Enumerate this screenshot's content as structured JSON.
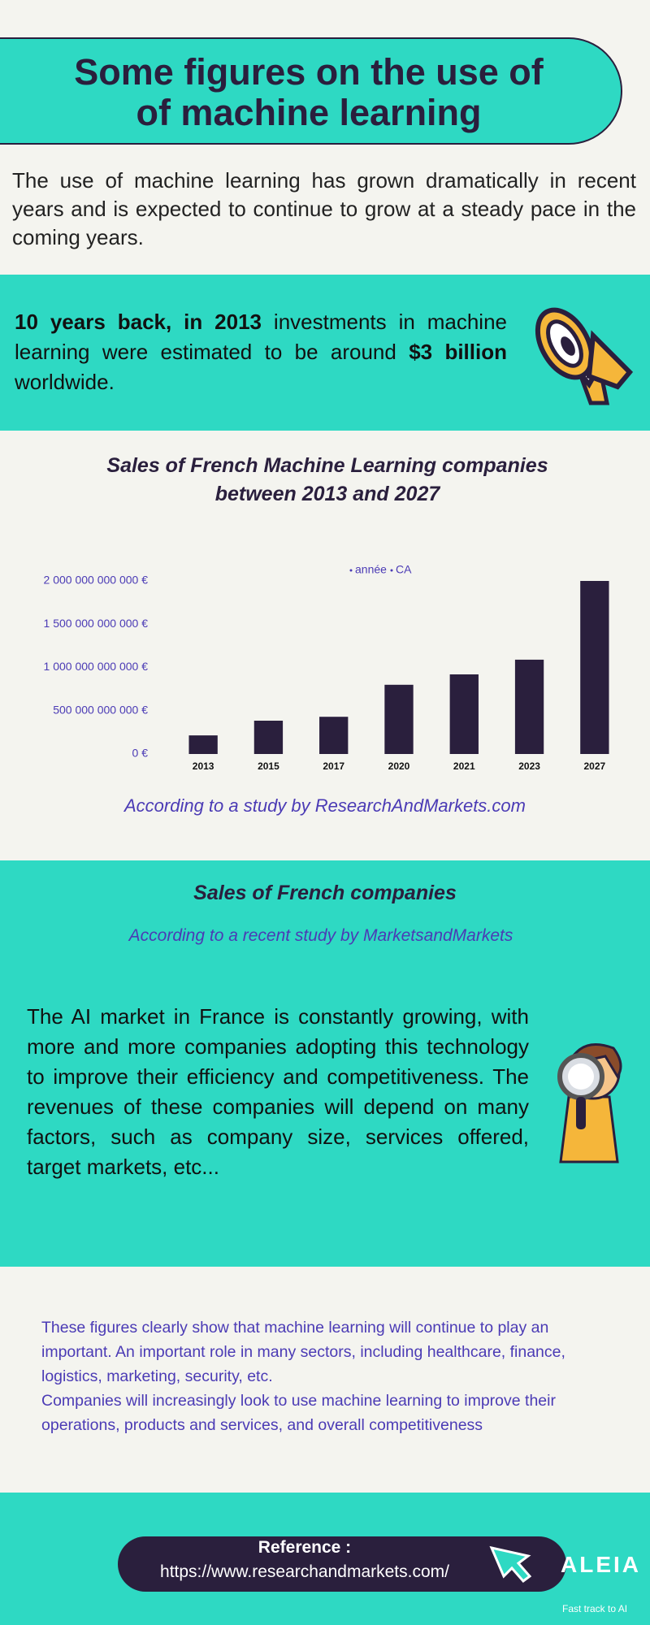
{
  "header": {
    "title_lines": [
      "Some figures on the use of",
      "of machine learning"
    ]
  },
  "intro": "The use of machine learning has grown dramatically in recent years and is expected to continue to grow at a steady pace in the coming years.",
  "highlight": {
    "runs": [
      {
        "text": "10 years back, in 2013",
        "bold": true
      },
      {
        "text": " investments in machine learning were estimated to be around ",
        "bold": false
      },
      {
        "text": "$3 billion",
        "bold": true
      },
      {
        "text": " worldwide.",
        "bold": false
      }
    ]
  },
  "chart_data": {
    "type": "bar",
    "title_lines": [
      "Sales of French Machine Learning companies",
      "between 2013 and 2027"
    ],
    "legend": [
      "année",
      "CA"
    ],
    "categories": [
      "2013",
      "2015",
      "2017",
      "2020",
      "2021",
      "2023",
      "2027"
    ],
    "values": [
      215000000000,
      385000000000,
      430000000000,
      800000000000,
      920000000000,
      1090000000000,
      2000000000000
    ],
    "color": "#2a1f3d",
    "ylim": [
      0,
      2000000000000
    ],
    "yticks": [
      {
        "value": 0,
        "label": "0 €"
      },
      {
        "value": 500000000000,
        "label": "500 000 000 000 €"
      },
      {
        "value": 1000000000000,
        "label": "1 000 000 000 000 €"
      },
      {
        "value": 1500000000000,
        "label": "1 500 000 000 000 €"
      },
      {
        "value": 2000000000000,
        "label": "2 000 000 000 000 €"
      }
    ],
    "grid": false,
    "source": "According to a study by ResearchAndMarkets.com"
  },
  "section2": {
    "title": "Sales of French companies",
    "source": "According to a recent study by MarketsandMarkets",
    "text": "The AI market in France is constantly growing, with more and more companies adopting this technology to improve their efficiency and competitiveness. The revenues of these companies will depend on many factors, such as company size, services offered, target markets, etc..."
  },
  "conclusion": [
    "These figures clearly show that machine learning will continue to play an important. An important role in many sectors, including healthcare, finance, logistics, marketing, security, etc.",
    "Companies will increasingly look to use machine learning to improve their operations, products and services, and overall competitiveness"
  ],
  "reference": {
    "label": "Reference :",
    "url": "https://www.researchandmarkets.com/"
  },
  "logo": {
    "name": "ALEIA",
    "tagline": "Fast track to AI"
  }
}
